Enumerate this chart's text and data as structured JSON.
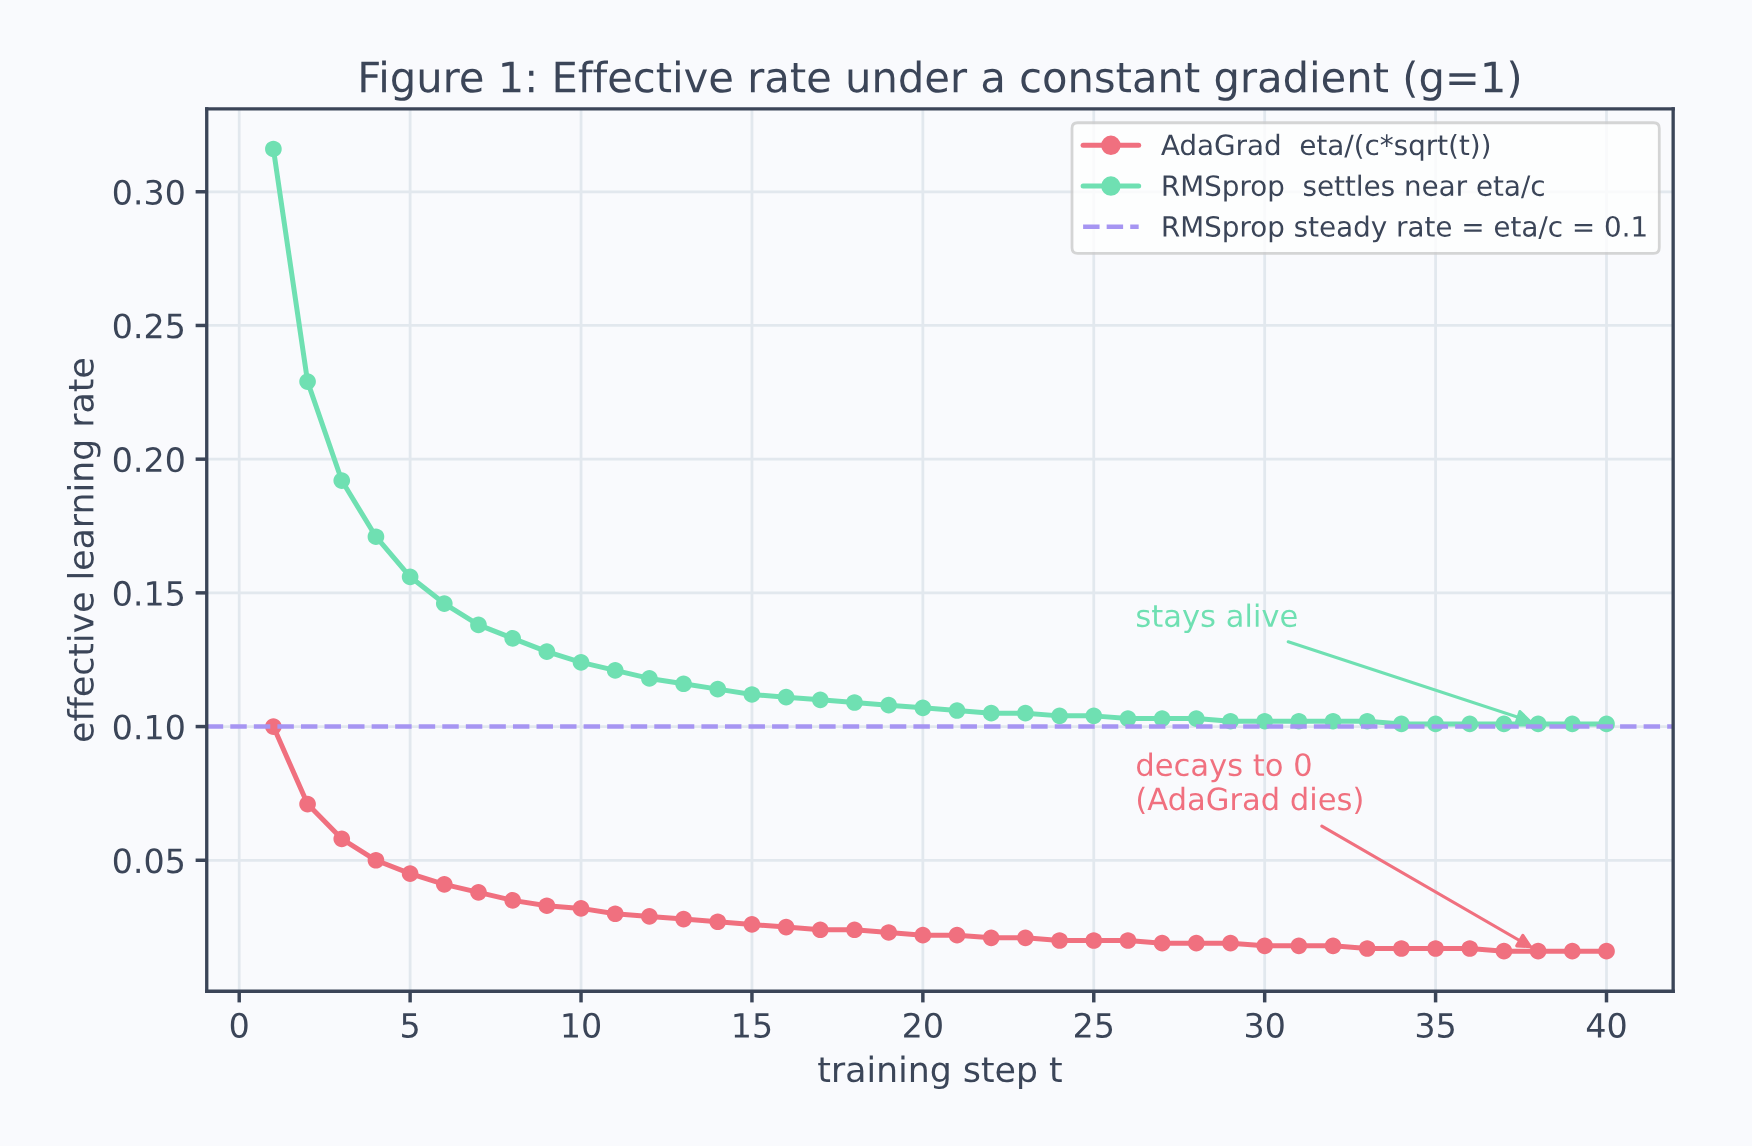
{
  "chart_data": {
    "type": "line",
    "title": "Figure 1: Effective rate under a constant gradient (g=1)",
    "xlabel": "training step t",
    "ylabel": "effective learning rate",
    "x": [
      1,
      2,
      3,
      4,
      5,
      6,
      7,
      8,
      9,
      10,
      11,
      12,
      13,
      14,
      15,
      16,
      17,
      18,
      19,
      20,
      21,
      22,
      23,
      24,
      25,
      26,
      27,
      28,
      29,
      30,
      31,
      32,
      33,
      34,
      35,
      36,
      37,
      38,
      39,
      40
    ],
    "series": [
      {
        "name": "AdaGrad  eta/(c*sqrt(t))",
        "color": "#f0707f",
        "values": [
          0.1,
          0.071,
          0.058,
          0.05,
          0.045,
          0.041,
          0.038,
          0.035,
          0.033,
          0.032,
          0.03,
          0.029,
          0.028,
          0.027,
          0.026,
          0.025,
          0.024,
          0.024,
          0.023,
          0.022,
          0.022,
          0.021,
          0.021,
          0.02,
          0.02,
          0.02,
          0.019,
          0.019,
          0.019,
          0.018,
          0.018,
          0.018,
          0.017,
          0.017,
          0.017,
          0.017,
          0.016,
          0.016,
          0.016,
          0.016
        ]
      },
      {
        "name": "RMSprop  settles near eta/c",
        "color": "#6fe0b2",
        "values": [
          0.316,
          0.229,
          0.192,
          0.171,
          0.156,
          0.146,
          0.138,
          0.133,
          0.128,
          0.124,
          0.121,
          0.118,
          0.116,
          0.114,
          0.112,
          0.111,
          0.11,
          0.109,
          0.108,
          0.107,
          0.106,
          0.105,
          0.105,
          0.104,
          0.104,
          0.103,
          0.103,
          0.103,
          0.102,
          0.102,
          0.102,
          0.102,
          0.102,
          0.101,
          0.101,
          0.101,
          0.101,
          0.101,
          0.101,
          0.101
        ]
      }
    ],
    "ref_lines": [
      {
        "axis": "y",
        "value": 0.1,
        "label": "RMSprop steady rate = eta/c = 0.1",
        "color": "#a695f2",
        "line_style": "dashed"
      }
    ],
    "annotations": [
      {
        "text": "stays alive",
        "x": 38,
        "y": 0.101
      },
      {
        "text": "decays to 0\n(AdaGrad dies)",
        "x": 38,
        "y": 0.016
      }
    ],
    "xlim": [
      -0.95,
      41.95
    ],
    "ylim": [
      0.001,
      0.331
    ],
    "xticks": [
      0,
      5,
      10,
      15,
      20,
      25,
      30,
      35,
      40
    ],
    "yticks": [
      {
        "value": 0.05,
        "label": "0.05"
      },
      {
        "value": 0.1,
        "label": "0.10"
      },
      {
        "value": 0.15,
        "label": "0.15"
      },
      {
        "value": 0.2,
        "label": "0.20"
      },
      {
        "value": 0.25,
        "label": "0.25"
      },
      {
        "value": 0.3,
        "label": "0.30"
      }
    ],
    "grid": true,
    "legend": "top right",
    "marker": "circle",
    "line_style": "solid"
  }
}
